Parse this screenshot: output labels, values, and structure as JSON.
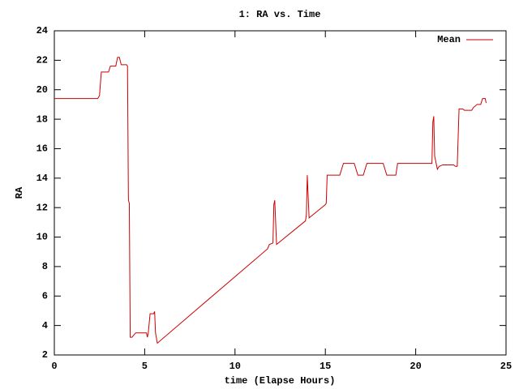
{
  "chart_data": {
    "type": "line",
    "title": "1: RA vs. Time",
    "xlabel": "time (Elapse Hours)",
    "ylabel": "RA",
    "legend": "top-right",
    "grid": false,
    "x": [
      0,
      2.4,
      2.5,
      2.6,
      3.0,
      3.1,
      3.4,
      3.5,
      3.6,
      3.7,
      4.0,
      4.05,
      4.1,
      4.15,
      4.2,
      4.3,
      4.5,
      5.1,
      5.15,
      5.2,
      5.3,
      5.5,
      5.55,
      5.6,
      5.7,
      11.8,
      11.9,
      12.1,
      12.15,
      12.2,
      12.3,
      13.9,
      13.95,
      14.0,
      14.1,
      15.0,
      15.05,
      15.1,
      15.8,
      16.0,
      16.6,
      16.8,
      17.1,
      17.3,
      18.2,
      18.4,
      18.9,
      19.0,
      20.9,
      20.95,
      21.0,
      21.05,
      21.2,
      21.3,
      21.5,
      22.1,
      22.2,
      22.3,
      22.4,
      22.6,
      22.7,
      23.1,
      23.2,
      23.4,
      23.6,
      23.7,
      23.85,
      23.9
    ],
    "series": [
      {
        "name": "Mean",
        "color": "#cc0000",
        "values": [
          19.4,
          19.4,
          19.6,
          21.2,
          21.2,
          21.6,
          21.6,
          22.2,
          22.2,
          21.7,
          21.7,
          21.6,
          12.5,
          12.3,
          3.2,
          3.2,
          3.5,
          3.5,
          3.2,
          3.5,
          4.8,
          4.8,
          4.95,
          3.5,
          2.8,
          9.2,
          9.5,
          9.6,
          12.2,
          12.5,
          9.5,
          11.1,
          11.5,
          14.2,
          11.3,
          12.2,
          12.3,
          14.2,
          14.2,
          15.0,
          15.0,
          14.2,
          14.2,
          15.0,
          15.0,
          14.2,
          14.2,
          15.0,
          15.0,
          17.8,
          18.2,
          15.5,
          14.6,
          14.8,
          14.9,
          14.9,
          14.8,
          14.8,
          18.7,
          18.7,
          18.6,
          18.6,
          18.8,
          19.0,
          19.0,
          19.4,
          19.4,
          19.1
        ]
      }
    ],
    "xlim": [
      0,
      25
    ],
    "xticks": [
      0,
      5,
      10,
      15,
      20,
      25
    ],
    "ylim": [
      2,
      24
    ],
    "yticks": [
      2,
      4,
      6,
      8,
      10,
      12,
      14,
      16,
      18,
      20,
      22,
      24
    ]
  }
}
